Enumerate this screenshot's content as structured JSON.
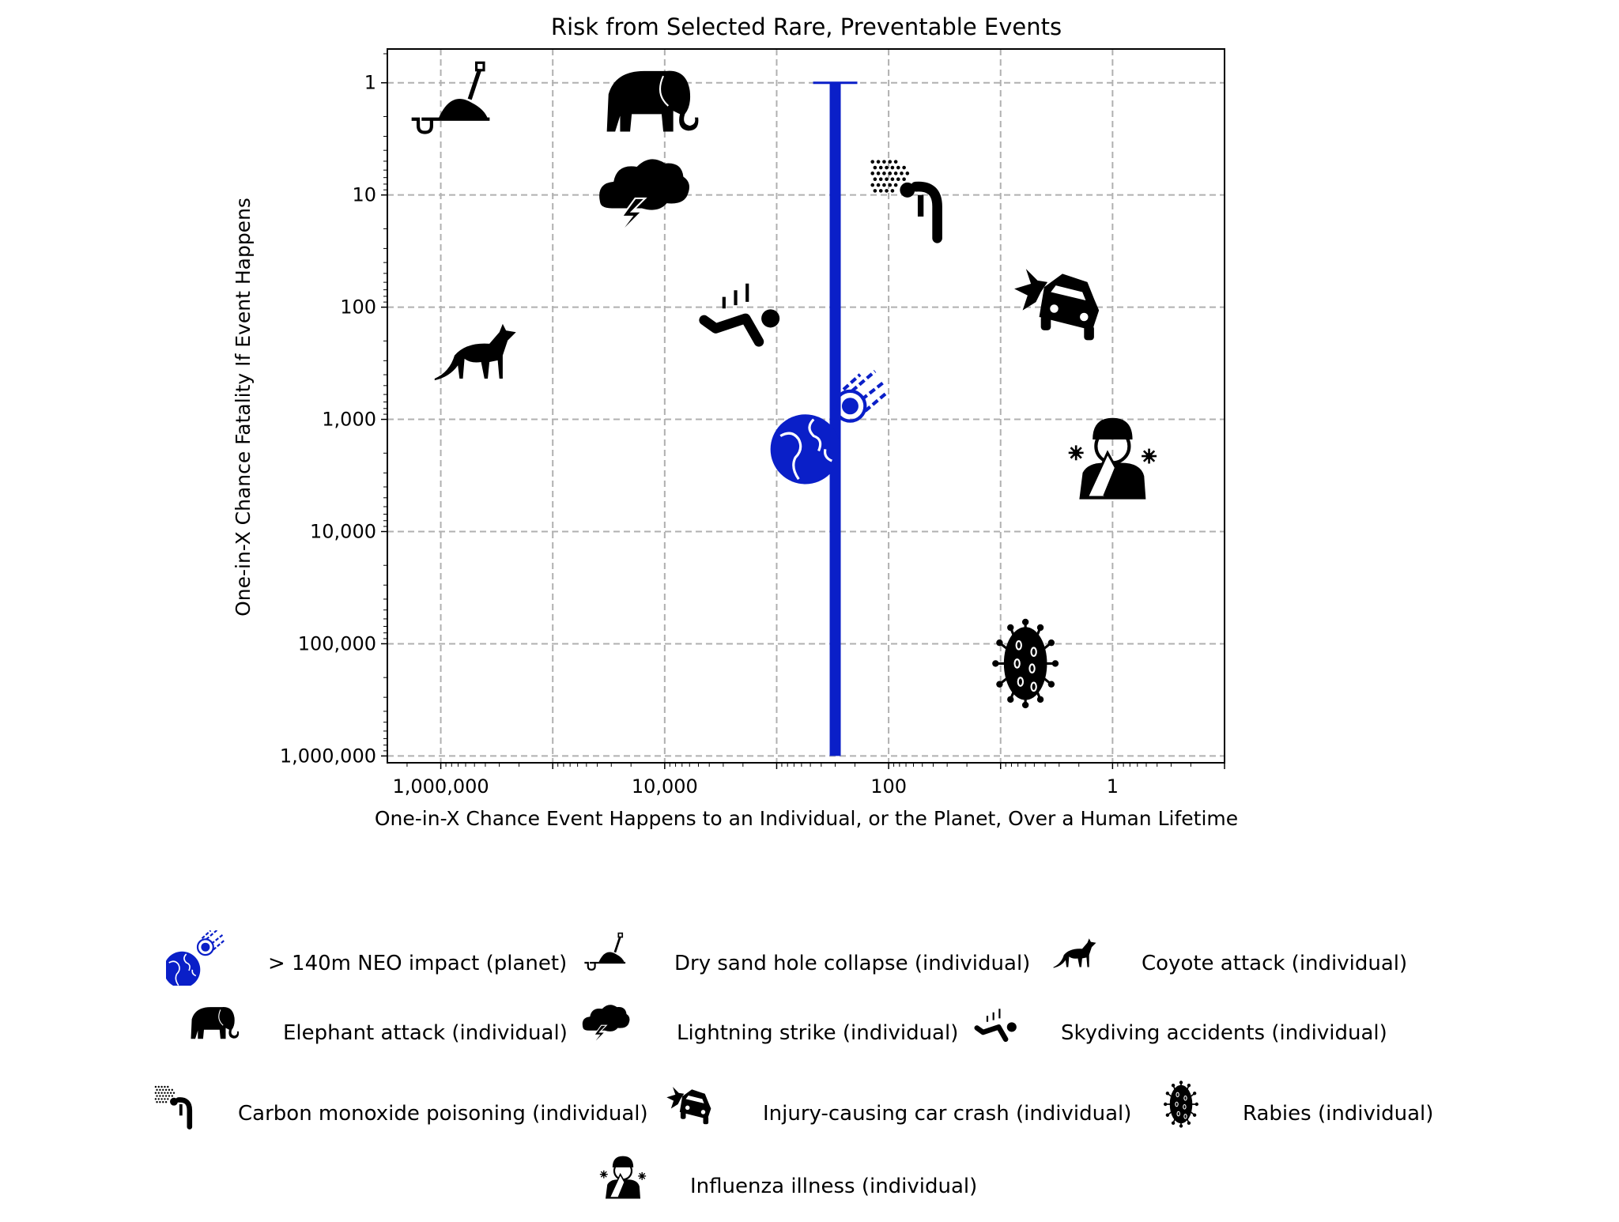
{
  "chart_data": {
    "type": "scatter",
    "title": "Risk from Selected Rare, Preventable Events",
    "xlabel": "One-in-X Chance Event Happens to an Individual, or the Planet, Over a Human Lifetime",
    "ylabel": "One-in-X Chance Fatality If Event Happens",
    "xscale": "log",
    "yscale": "log",
    "x_reversed": true,
    "y_reversed": true,
    "xlim": [
      3000000,
      0.1
    ],
    "ylim": [
      0.5,
      1150000
    ],
    "grid": true,
    "x_ticks": [
      1000000,
      10000,
      100,
      1
    ],
    "x_tick_labels": [
      "1,000,000",
      "10,000",
      "100",
      "1"
    ],
    "y_ticks": [
      1,
      10,
      100,
      1000,
      10000,
      100000,
      1000000
    ],
    "y_tick_labels": [
      "1",
      "10",
      "100",
      "1,000",
      "10,000",
      "100,000",
      "1,000,000"
    ],
    "legend_placement": "below",
    "colors": {
      "neo": "#0a1fc8",
      "icons": "#000000",
      "grid": "#b0b0b0"
    },
    "points": [
      {
        "label": "> 140m NEO impact (planet)",
        "icon": "earth-meteor-icon",
        "x": 300,
        "y": 1000,
        "y_range": [
          1,
          1000000
        ]
      },
      {
        "label": "Dry sand hole collapse (individual)",
        "icon": "sand-shovel-icon",
        "x": 750000,
        "y": 1.5
      },
      {
        "label": "Coyote attack (individual)",
        "icon": "coyote-icon",
        "x": 500000,
        "y": 260
      },
      {
        "label": "Elephant attack (individual)",
        "icon": "elephant-icon",
        "x": 14000,
        "y": 1.5
      },
      {
        "label": "Lightning strike (individual)",
        "icon": "storm-cloud-icon",
        "x": 16000,
        "y": 10
      },
      {
        "label": "Skydiving accidents (individual)",
        "icon": "falling-person-icon",
        "x": 2100,
        "y": 110
      },
      {
        "label": "Carbon monoxide poisoning (individual)",
        "icon": "gas-person-icon",
        "x": 68,
        "y": 10
      },
      {
        "label": "Injury-causing car crash (individual)",
        "icon": "car-crash-icon",
        "x": 3,
        "y": 90
      },
      {
        "label": "Rabies (individual)",
        "icon": "virus-icon",
        "x": 6,
        "y": 150000
      },
      {
        "label": "Influenza illness (individual)",
        "icon": "sneezing-person-icon",
        "x": 1,
        "y": 2200
      }
    ]
  }
}
